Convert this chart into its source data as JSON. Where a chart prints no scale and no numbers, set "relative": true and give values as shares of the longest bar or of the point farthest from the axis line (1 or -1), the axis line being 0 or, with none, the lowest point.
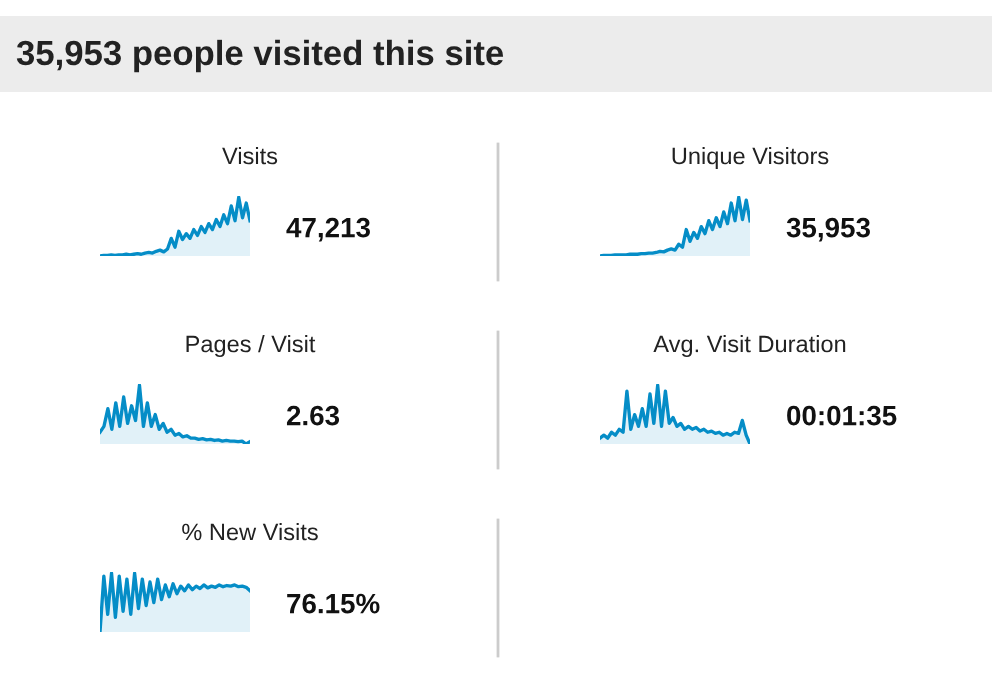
{
  "chart_data": [
    {
      "type": "other",
      "title": "35,953 people visited this site"
    },
    {
      "type": "area",
      "relative": true,
      "title": "Visits",
      "annotations": [
        "47,213"
      ],
      "categories": [
        null,
        null,
        null,
        null,
        null,
        null,
        null,
        null,
        null,
        null,
        null,
        null,
        null,
        null,
        null,
        null,
        null,
        null,
        null,
        null,
        null,
        null,
        null,
        null,
        null,
        null,
        null,
        null,
        null,
        null,
        null,
        null,
        null,
        null,
        null,
        null,
        null,
        null,
        null,
        null,
        null
      ],
      "series": [
        {
          "color": "#058dc7",
          "values": [
            0,
            0.01,
            0.01,
            0.02,
            0.01,
            0.02,
            0.02,
            0.03,
            0.02,
            0.03,
            0.04,
            0.03,
            0.05,
            0.06,
            0.05,
            0.08,
            0.1,
            0.07,
            0.12,
            0.3,
            0.15,
            0.42,
            0.28,
            0.38,
            0.3,
            0.45,
            0.35,
            0.5,
            0.4,
            0.55,
            0.45,
            0.62,
            0.5,
            0.7,
            0.55,
            0.85,
            0.6,
            1.0,
            0.65,
            0.9,
            0.6
          ]
        }
      ]
    },
    {
      "type": "area",
      "relative": true,
      "title": "Unique Visitors",
      "annotations": [
        "35,953"
      ],
      "categories": [
        null,
        null,
        null,
        null,
        null,
        null,
        null,
        null,
        null,
        null,
        null,
        null,
        null,
        null,
        null,
        null,
        null,
        null,
        null,
        null,
        null,
        null,
        null,
        null,
        null,
        null,
        null,
        null,
        null,
        null,
        null,
        null,
        null,
        null,
        null,
        null,
        null,
        null,
        null,
        null,
        null
      ],
      "series": [
        {
          "color": "#058dc7",
          "values": [
            0,
            0.01,
            0.01,
            0.01,
            0.02,
            0.02,
            0.02,
            0.02,
            0.03,
            0.03,
            0.03,
            0.04,
            0.04,
            0.05,
            0.05,
            0.06,
            0.08,
            0.07,
            0.1,
            0.12,
            0.1,
            0.2,
            0.15,
            0.45,
            0.25,
            0.4,
            0.3,
            0.5,
            0.38,
            0.6,
            0.45,
            0.65,
            0.5,
            0.75,
            0.55,
            0.9,
            0.6,
            1.0,
            0.62,
            0.95,
            0.6
          ]
        }
      ]
    },
    {
      "type": "area",
      "relative": true,
      "title": "Pages / Visit",
      "annotations": [
        "2.63"
      ],
      "categories": [
        null,
        null,
        null,
        null,
        null,
        null,
        null,
        null,
        null,
        null,
        null,
        null,
        null,
        null,
        null,
        null,
        null,
        null,
        null,
        null,
        null,
        null,
        null,
        null,
        null,
        null,
        null,
        null,
        null,
        null,
        null,
        null,
        null,
        null,
        null,
        null,
        null,
        null,
        null
      ],
      "series": [
        {
          "color": "#058dc7",
          "values": [
            0.2,
            0.3,
            0.6,
            0.25,
            0.7,
            0.3,
            0.8,
            0.35,
            0.65,
            0.4,
            1.0,
            0.3,
            0.7,
            0.3,
            0.5,
            0.25,
            0.35,
            0.2,
            0.25,
            0.15,
            0.18,
            0.12,
            0.14,
            0.1,
            0.1,
            0.08,
            0.09,
            0.07,
            0.08,
            0.06,
            0.07,
            0.05,
            0.06,
            0.05,
            0.05,
            0.04,
            0.05,
            0.0,
            0.04
          ]
        }
      ]
    },
    {
      "type": "area",
      "relative": true,
      "title": "Avg. Visit Duration",
      "annotations": [
        "00:01:35"
      ],
      "categories": [
        null,
        null,
        null,
        null,
        null,
        null,
        null,
        null,
        null,
        null,
        null,
        null,
        null,
        null,
        null,
        null,
        null,
        null,
        null,
        null,
        null,
        null,
        null,
        null,
        null,
        null,
        null,
        null,
        null,
        null,
        null,
        null,
        null,
        null,
        null,
        null,
        null,
        null,
        null,
        null
      ],
      "series": [
        {
          "color": "#058dc7",
          "values": [
            0.1,
            0.15,
            0.1,
            0.2,
            0.15,
            0.25,
            0.2,
            0.9,
            0.25,
            0.5,
            0.3,
            0.6,
            0.3,
            0.85,
            0.35,
            1.0,
            0.3,
            0.9,
            0.35,
            0.45,
            0.3,
            0.35,
            0.25,
            0.3,
            0.25,
            0.28,
            0.22,
            0.25,
            0.2,
            0.22,
            0.18,
            0.2,
            0.15,
            0.18,
            0.15,
            0.2,
            0.18,
            0.4,
            0.15,
            0.0
          ]
        }
      ]
    },
    {
      "type": "area",
      "relative": true,
      "title": "% New Visits",
      "annotations": [
        "76.15%"
      ],
      "categories": [
        null,
        null,
        null,
        null,
        null,
        null,
        null,
        null,
        null,
        null,
        null,
        null,
        null,
        null,
        null,
        null,
        null,
        null,
        null,
        null,
        null,
        null,
        null,
        null,
        null,
        null,
        null,
        null,
        null,
        null,
        null,
        null,
        null,
        null,
        null,
        null,
        null,
        null,
        null,
        null
      ],
      "series": [
        {
          "color": "#058dc7",
          "values": [
            0.0,
            0.95,
            0.3,
            1.0,
            0.25,
            0.95,
            0.35,
            0.9,
            0.3,
            1.0,
            0.4,
            0.9,
            0.45,
            0.85,
            0.5,
            0.9,
            0.55,
            0.8,
            0.6,
            0.82,
            0.65,
            0.78,
            0.7,
            0.8,
            0.72,
            0.78,
            0.74,
            0.8,
            0.75,
            0.78,
            0.76,
            0.8,
            0.77,
            0.79,
            0.78,
            0.8,
            0.77,
            0.78,
            0.76,
            0.7
          ]
        }
      ]
    }
  ]
}
